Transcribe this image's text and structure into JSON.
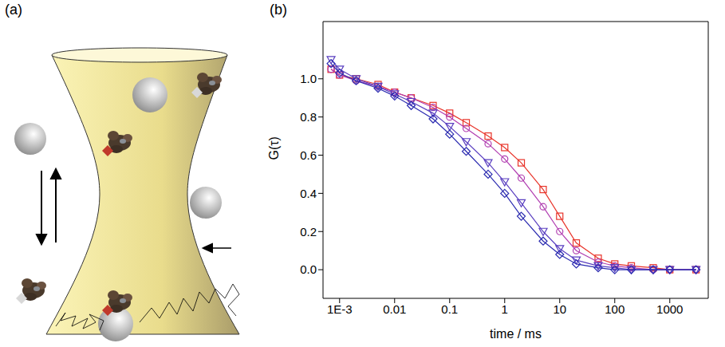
{
  "panels": {
    "a": {
      "label": "(a)"
    },
    "b": {
      "label": "(b)"
    }
  },
  "chart_data": {
    "type": "line",
    "x_label": "time / ms",
    "y_label": "G(τ)",
    "log": "x",
    "grid": false,
    "tick_labels": true,
    "xlim": [
      0.0005,
      5000
    ],
    "ylim": [
      -0.15,
      1.3
    ],
    "xticks": [
      {
        "value": 0.001,
        "label": "1E-3"
      },
      0.01,
      0.1,
      1,
      10,
      100,
      1000
    ],
    "yticks": [
      {
        "value": 0,
        "label": "0.0"
      },
      0.2,
      0.4,
      0.6,
      0.8,
      {
        "value": 1,
        "label": "1.0"
      }
    ],
    "x": [
      0.0007,
      0.001,
      0.002,
      0.005,
      0.01,
      0.02,
      0.05,
      0.1,
      0.2,
      0.5,
      1,
      2,
      5,
      10,
      20,
      50,
      100,
      200,
      500,
      1000,
      3000
    ],
    "series": [
      {
        "color": "#e8342a",
        "marker": "square",
        "line_style": "solid",
        "values": [
          1.05,
          1.02,
          1.0,
          0.97,
          0.93,
          0.9,
          0.86,
          0.82,
          0.77,
          0.7,
          0.64,
          0.56,
          0.42,
          0.28,
          0.14,
          0.06,
          0.03,
          0.02,
          0.01,
          0.0,
          0.0
        ]
      },
      {
        "color": "#b03cb0",
        "marker": "circle",
        "line_style": "solid",
        "values": [
          1.05,
          1.02,
          0.99,
          0.96,
          0.93,
          0.9,
          0.85,
          0.8,
          0.74,
          0.66,
          0.58,
          0.48,
          0.33,
          0.2,
          0.1,
          0.04,
          0.02,
          0.01,
          0.0,
          0.0,
          0.0
        ]
      },
      {
        "color": "#5a3fc0",
        "marker": "triangle_down",
        "line_style": "solid",
        "values": [
          1.1,
          1.05,
          1.0,
          0.96,
          0.92,
          0.88,
          0.82,
          0.75,
          0.67,
          0.56,
          0.46,
          0.35,
          0.2,
          0.11,
          0.05,
          0.02,
          0.01,
          0.0,
          0.0,
          0.0,
          0.0
        ]
      },
      {
        "color": "#2b2bb0",
        "marker": "diamond",
        "line_style": "solid",
        "values": [
          1.08,
          1.03,
          0.99,
          0.95,
          0.91,
          0.86,
          0.79,
          0.71,
          0.62,
          0.5,
          0.4,
          0.28,
          0.15,
          0.08,
          0.03,
          0.01,
          0.0,
          0.0,
          0.0,
          0.0,
          0.0
        ]
      }
    ]
  }
}
